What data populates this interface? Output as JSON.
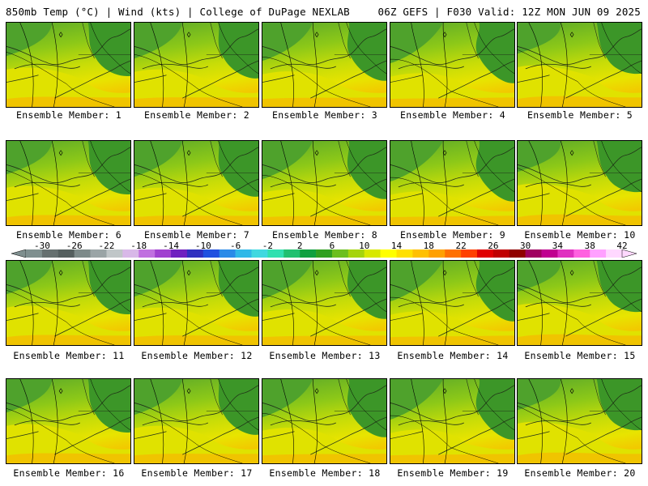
{
  "header": {
    "left": "850mb Temp (°C) | Wind (kts) | College of DuPage NEXLAB",
    "right": "06Z GEFS | F030 Valid: 12Z MON JUN 09 2025"
  },
  "panel_label_prefix": "Ensemble Member: ",
  "members": [
    1,
    2,
    3,
    4,
    5,
    6,
    7,
    8,
    9,
    10,
    11,
    12,
    13,
    14,
    15,
    16,
    17,
    18,
    19,
    20
  ],
  "colorbar": {
    "tick_labels": [
      "-30",
      "-26",
      "-22",
      "-18",
      "-14",
      "-10",
      "-6",
      "-2",
      "2",
      "6",
      "10",
      "14",
      "18",
      "22",
      "26",
      "30",
      "34",
      "38",
      "42"
    ],
    "colors": [
      "#7f8f8f",
      "#667070",
      "#555f5f",
      "#7d8a8a",
      "#9aa4a6",
      "#c0c6c8",
      "#d8b8e8",
      "#c070e0",
      "#a040d0",
      "#6f20c0",
      "#3030c0",
      "#2050e0",
      "#2a8ae8",
      "#30b8e8",
      "#40d8e0",
      "#30e0b0",
      "#20c070",
      "#10a040",
      "#30a020",
      "#6cbf1e",
      "#a6d40c",
      "#d8e800",
      "#ffff00",
      "#ffe000",
      "#ffc000",
      "#ffa000",
      "#ff7000",
      "#ff4000",
      "#e00000",
      "#c00000",
      "#900000",
      "#a00060",
      "#c00090",
      "#e030c0",
      "#ff60e0",
      "#ffa0ff",
      "#ffd8ff"
    ]
  }
}
